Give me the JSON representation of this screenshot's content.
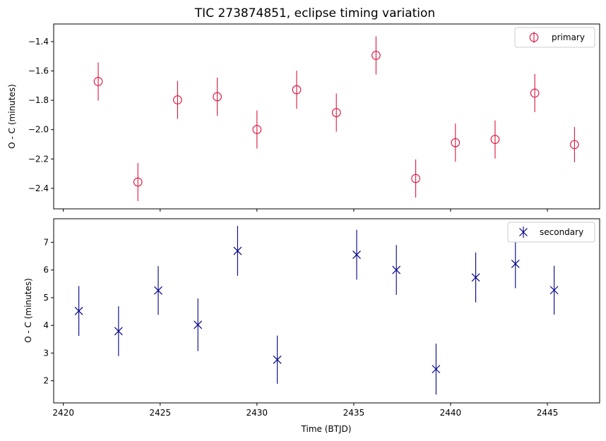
{
  "chart_data": [
    {
      "type": "scatter",
      "title": "TIC 273874851, eclipse timing variation",
      "xlabel": "",
      "ylabel": "O - C (minutes)",
      "xlim": [
        2419.5,
        2447.7
      ],
      "ylim": [
        -2.54,
        -1.28
      ],
      "yticks": [
        -2.4,
        -2.2,
        -2.0,
        -1.8,
        -1.6,
        -1.4
      ],
      "ytick_labels": [
        "−2.4",
        "−2.2",
        "−2.0",
        "−1.8",
        "−1.6",
        "−1.4"
      ],
      "xticks": [
        2420,
        2425,
        2430,
        2435,
        2440,
        2445
      ],
      "show_xtick_labels": false,
      "grid": false,
      "legend": "top-right",
      "series": [
        {
          "name": "primary",
          "marker": "open-circle",
          "color": "#dc143c",
          "x": [
            2421.8,
            2423.85,
            2425.9,
            2427.95,
            2430.0,
            2432.05,
            2434.1,
            2436.15,
            2438.2,
            2440.25,
            2442.3,
            2444.35,
            2446.4
          ],
          "y": [
            -1.672,
            -2.357,
            -1.797,
            -1.776,
            -1.999,
            -1.728,
            -1.884,
            -1.494,
            -2.333,
            -2.089,
            -2.067,
            -1.751,
            -2.102
          ],
          "yerr": [
            0.13,
            0.13,
            0.13,
            0.13,
            0.13,
            0.13,
            0.13,
            0.13,
            0.13,
            0.13,
            0.13,
            0.13,
            0.12
          ]
        }
      ]
    },
    {
      "type": "scatter",
      "title": "",
      "xlabel": "Time (BTJD)",
      "ylabel": "O - C (minutes)",
      "xlim": [
        2419.5,
        2447.7
      ],
      "ylim": [
        1.2,
        7.85
      ],
      "yticks": [
        2,
        3,
        4,
        5,
        6,
        7
      ],
      "ytick_labels": [
        "2",
        "3",
        "4",
        "5",
        "6",
        "7"
      ],
      "xticks": [
        2420,
        2425,
        2430,
        2435,
        2440,
        2445
      ],
      "xtick_labels": [
        "2420",
        "2425",
        "2430",
        "2435",
        "2440",
        "2445"
      ],
      "grid": false,
      "legend": "top-right",
      "series": [
        {
          "name": "secondary",
          "marker": "x",
          "color": "#00008b",
          "x": [
            2420.8,
            2422.85,
            2424.9,
            2426.95,
            2429.0,
            2431.05,
            2435.15,
            2437.2,
            2439.25,
            2441.3,
            2443.35,
            2445.35
          ],
          "y": [
            4.52,
            3.79,
            5.26,
            4.02,
            6.69,
            2.76,
            6.55,
            6.0,
            2.42,
            5.73,
            6.22,
            5.27
          ],
          "yerr": [
            0.9,
            0.9,
            0.88,
            0.95,
            0.9,
            0.87,
            0.9,
            0.9,
            0.92,
            0.9,
            0.88,
            0.88
          ]
        }
      ]
    }
  ]
}
